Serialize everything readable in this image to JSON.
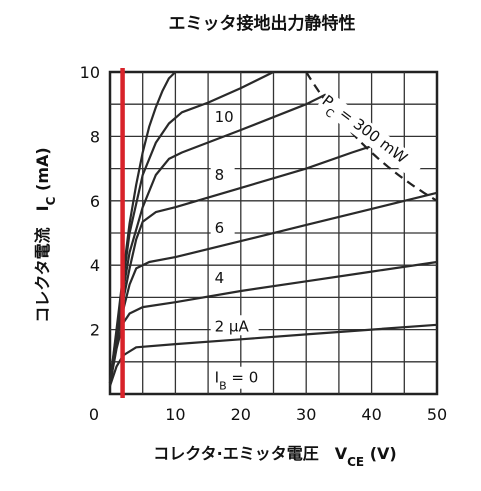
{
  "chart_data": {
    "type": "line",
    "title": "エミッタ接地出力静特性",
    "xlabel": {
      "main": "コレクタ·エミッタ電圧　V",
      "sub": "CE",
      "unit": " (V)"
    },
    "ylabel": {
      "main": "コレクタ電流　I",
      "sub": "C",
      "unit": " (mA)"
    },
    "xlim": [
      0,
      50
    ],
    "ylim": [
      0,
      10
    ],
    "xticks": [
      0,
      10,
      20,
      30,
      40,
      50
    ],
    "yticks": [
      2,
      4,
      6,
      8,
      10
    ],
    "x_tick_labels": [
      "0",
      "10",
      "20",
      "30",
      "40",
      "50"
    ],
    "y_tick_labels": [
      "2",
      "4",
      "6",
      "8",
      "10"
    ],
    "grid": true,
    "series": [
      {
        "name": "2 μA",
        "points": [
          [
            0,
            0.25
          ],
          [
            1,
            0.85
          ],
          [
            2,
            1.2
          ],
          [
            4,
            1.45
          ],
          [
            10,
            1.55
          ],
          [
            20,
            1.7
          ],
          [
            30,
            1.85
          ],
          [
            40,
            2.0
          ],
          [
            50,
            2.15
          ]
        ]
      },
      {
        "name": "4",
        "points": [
          [
            0,
            0.3
          ],
          [
            1,
            1.4
          ],
          [
            2,
            2.2
          ],
          [
            3,
            2.5
          ],
          [
            5,
            2.7
          ],
          [
            10,
            2.85
          ],
          [
            20,
            3.2
          ],
          [
            30,
            3.5
          ],
          [
            40,
            3.8
          ],
          [
            50,
            4.1
          ]
        ]
      },
      {
        "name": "6",
        "points": [
          [
            0,
            0.35
          ],
          [
            1,
            1.6
          ],
          [
            2,
            2.6
          ],
          [
            3,
            3.4
          ],
          [
            4,
            3.9
          ],
          [
            6,
            4.1
          ],
          [
            10,
            4.25
          ],
          [
            20,
            4.75
          ],
          [
            30,
            5.25
          ],
          [
            40,
            5.75
          ],
          [
            50,
            6.25
          ]
        ]
      },
      {
        "name": "8",
        "points": [
          [
            0,
            0.35
          ],
          [
            1,
            1.7
          ],
          [
            2,
            2.9
          ],
          [
            3,
            3.9
          ],
          [
            4,
            4.8
          ],
          [
            5,
            5.35
          ],
          [
            7,
            5.65
          ],
          [
            10,
            5.8
          ],
          [
            20,
            6.4
          ],
          [
            30,
            7.0
          ],
          [
            37,
            7.5
          ],
          [
            40,
            7.7
          ]
        ]
      },
      {
        "name": "10",
        "points": [
          [
            0,
            0.35
          ],
          [
            1,
            1.8
          ],
          [
            2,
            3.2
          ],
          [
            3,
            4.4
          ],
          [
            5,
            5.8
          ],
          [
            7,
            6.8
          ],
          [
            9,
            7.3
          ],
          [
            11,
            7.5
          ],
          [
            20,
            8.2
          ],
          [
            30,
            9.0
          ],
          [
            33,
            9.3
          ]
        ]
      },
      {
        "name": "",
        "points": [
          [
            0,
            0.35
          ],
          [
            1,
            1.9
          ],
          [
            2,
            3.5
          ],
          [
            3,
            5.0
          ],
          [
            5,
            6.8
          ],
          [
            7,
            7.8
          ],
          [
            9,
            8.4
          ],
          [
            11,
            8.75
          ],
          [
            15,
            9.05
          ],
          [
            20,
            9.5
          ],
          [
            25,
            10.0
          ]
        ]
      },
      {
        "name": "",
        "points": [
          [
            0,
            0.35
          ],
          [
            1,
            2.0
          ],
          [
            2,
            3.7
          ],
          [
            3,
            5.3
          ],
          [
            4,
            6.5
          ],
          [
            5,
            7.5
          ],
          [
            6,
            8.3
          ],
          [
            7,
            8.9
          ],
          [
            8,
            9.4
          ],
          [
            9,
            9.8
          ],
          [
            10,
            10.0
          ]
        ]
      }
    ],
    "series_color": "#2a2a2a",
    "power_curve": {
      "label": "P",
      "label_sub": "C",
      "label_rest": " = 300 mW",
      "from_x": 30,
      "to_x": 50,
      "pc_mw": 300,
      "color": "#222222"
    },
    "ib_label": {
      "text": "I",
      "sub": "B",
      "rest": " = 0"
    },
    "marker_line": {
      "x": 2,
      "color": "#d8232a"
    }
  }
}
